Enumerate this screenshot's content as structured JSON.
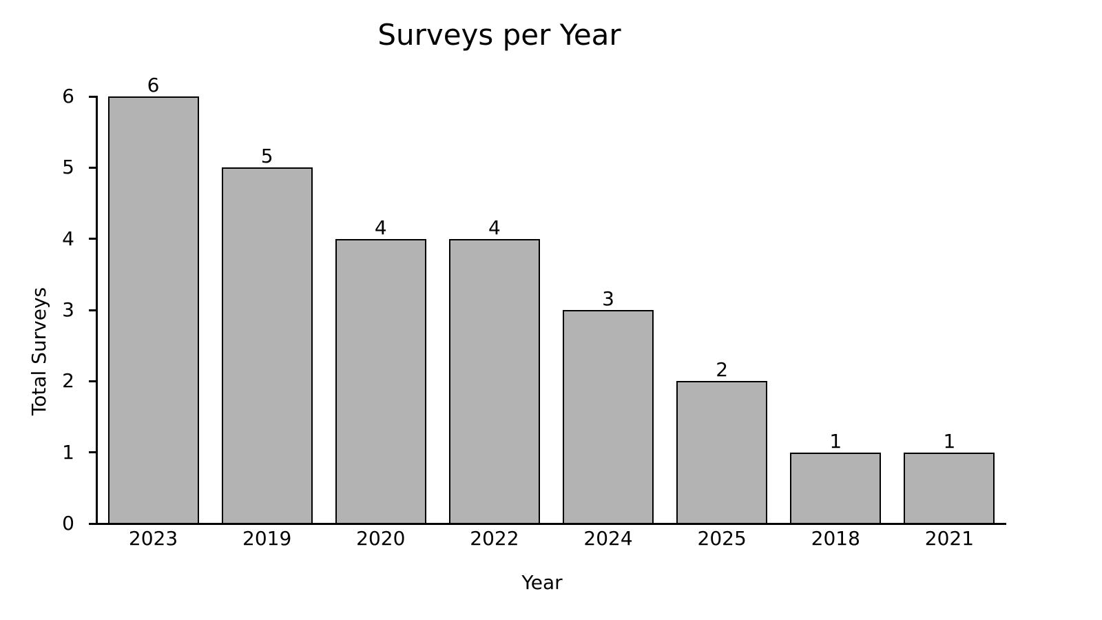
{
  "chart_data": {
    "type": "bar",
    "title": "Surveys per Year",
    "xlabel": "Year",
    "ylabel": "Total Surveys",
    "categories": [
      "2023",
      "2019",
      "2020",
      "2022",
      "2024",
      "2025",
      "2018",
      "2021"
    ],
    "values": [
      6,
      5,
      4,
      4,
      3,
      2,
      1,
      1
    ],
    "bar_labels": [
      "6",
      "5",
      "4",
      "4",
      "3",
      "2",
      "1",
      "1"
    ],
    "yticks": [
      0,
      1,
      2,
      3,
      4,
      5,
      6
    ],
    "ylim": [
      0,
      6
    ],
    "bar_width_fraction": 0.8,
    "grid": false,
    "legend_position": "none",
    "colors": {
      "bar_fill": "#b3b3b3",
      "bar_edge": "#000000",
      "axis": "#000000",
      "text": "#000000",
      "background": "#ffffff"
    }
  }
}
